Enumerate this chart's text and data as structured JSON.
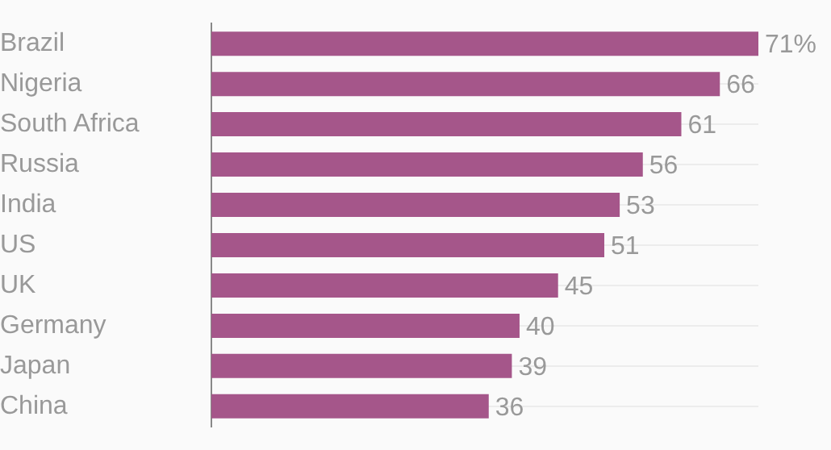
{
  "chart_data": {
    "type": "bar",
    "orientation": "horizontal",
    "categories": [
      "Brazil",
      "Nigeria",
      "South Africa",
      "Russia",
      "India",
      "US",
      "UK",
      "Germany",
      "Japan",
      "China"
    ],
    "values": [
      71,
      66,
      61,
      56,
      53,
      51,
      45,
      40,
      39,
      36
    ],
    "value_labels": [
      "71%",
      "66",
      "61",
      "56",
      "53",
      "51",
      "45",
      "40",
      "39",
      "36"
    ],
    "color": "#a5568a",
    "grid": "y"
  }
}
